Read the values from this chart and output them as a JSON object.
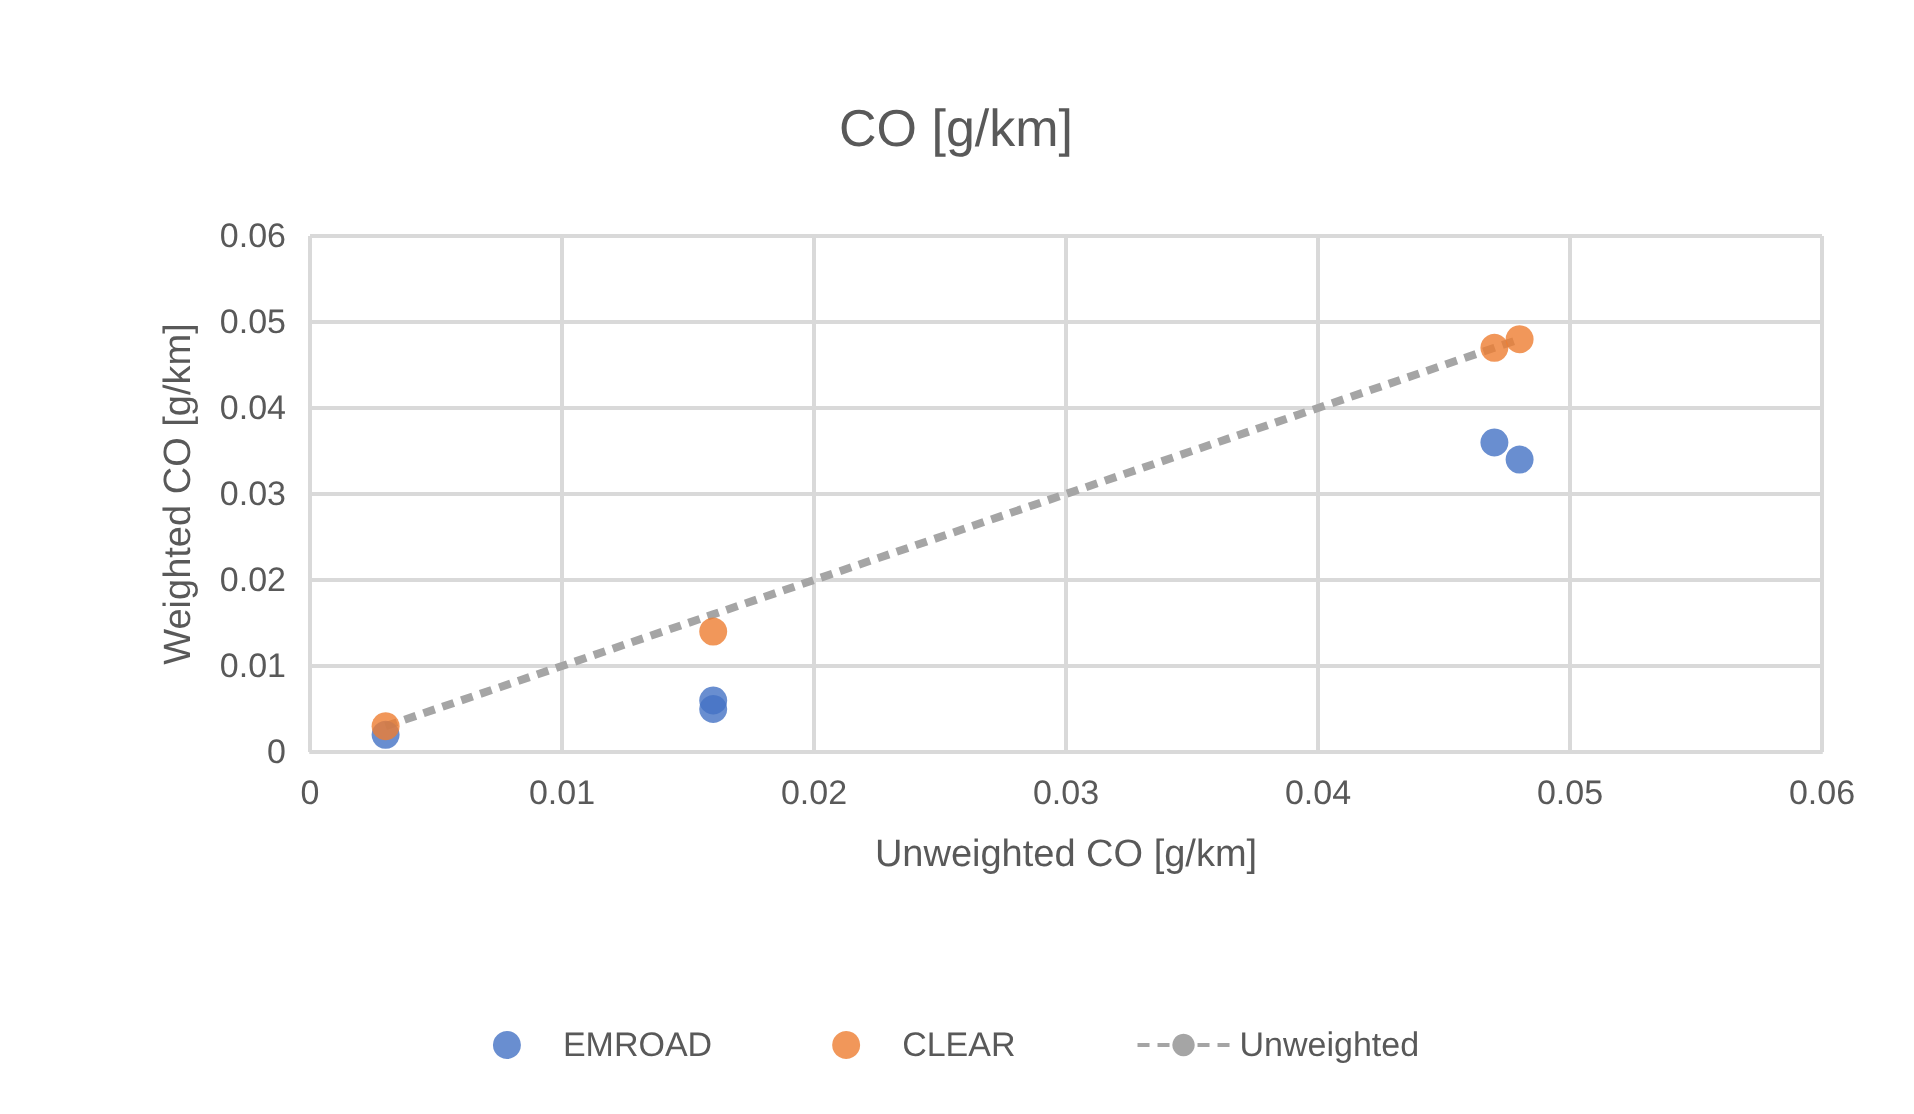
{
  "chart_data": {
    "type": "scatter",
    "title": "CO [g/km]",
    "xlabel": "Unweighted CO [g/km]",
    "ylabel": "Weighted CO [g/km]",
    "series": [
      {
        "name": "EMROAD",
        "color": "#4472c4",
        "x": [
          0.003,
          0.016,
          0.016,
          0.047,
          0.048
        ],
        "values": [
          0.002,
          0.005,
          0.006,
          0.036,
          0.034
        ]
      },
      {
        "name": "CLEAR",
        "color": "#ed7d31",
        "x": [
          0.003,
          0.016,
          0.047,
          0.048
        ],
        "values": [
          0.003,
          0.014,
          0.047,
          0.048
        ]
      },
      {
        "name": "Unweighted",
        "type": "line",
        "color": "#a5a5a5",
        "line_style": "dashed",
        "marker": "none",
        "x": [
          0.003,
          0.016,
          0.047,
          0.048
        ],
        "values": [
          0.003,
          0.016,
          0.047,
          0.048
        ]
      }
    ],
    "xlim": [
      0,
      0.06
    ],
    "xticks": [
      0,
      0.01,
      0.02,
      0.03,
      0.04,
      0.05,
      0.06
    ],
    "ylim": [
      0,
      0.06
    ],
    "yticks": [
      0,
      0.01,
      0.02,
      0.03,
      0.04,
      0.05,
      0.06
    ],
    "grid": true,
    "legend": "bottom",
    "marker": "circle"
  }
}
